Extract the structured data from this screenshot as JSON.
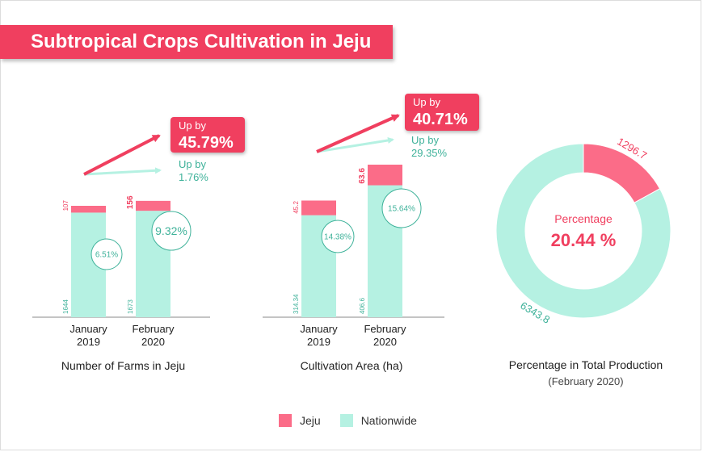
{
  "title": "Subtropical Crops Cultivation in Jeju",
  "colors": {
    "jeju": "#fb6c88",
    "nationwide": "#b5f1e2",
    "accent": "#f03f5f",
    "teal_text": "#3fb29a"
  },
  "legend": {
    "jeju": "Jeju",
    "nationwide": "Nationwide"
  },
  "chart_data": [
    {
      "type": "bar",
      "xlabel": "Number of Farms in Jeju",
      "categories": [
        "January\n2019",
        "February\n2020"
      ],
      "series": [
        {
          "name": "Jeju",
          "values": [
            107,
            156
          ],
          "labels": [
            "107",
            "156"
          ]
        },
        {
          "name": "Nationwide",
          "values": [
            1644,
            1673
          ],
          "labels": [
            "1644",
            "1673"
          ]
        }
      ],
      "ratio_labels": [
        "6.51%",
        "9.32%"
      ],
      "growth_jeju": {
        "line1": "Up by",
        "line2": "45.79%"
      },
      "growth_nationwide": {
        "line1": "Up by",
        "line2": "1.76%"
      }
    },
    {
      "type": "bar",
      "xlabel": "Cultivation Area (ha)",
      "categories": [
        "January\n2019",
        "February\n2020"
      ],
      "series": [
        {
          "name": "Jeju",
          "values": [
            45.2,
            63.6
          ],
          "labels": [
            "45.2",
            "63.6"
          ]
        },
        {
          "name": "Nationwide",
          "values": [
            314.34,
            406.6
          ],
          "labels": [
            "314.34",
            "406.6"
          ]
        }
      ],
      "ratio_labels": [
        "14.38%",
        "15.64%"
      ],
      "growth_jeju": {
        "line1": "Up by",
        "line2": "40.71%"
      },
      "growth_nationwide": {
        "line1": "Up by",
        "line2": "29.35%"
      }
    },
    {
      "type": "pie",
      "xlabel": "Percentage in Total Production",
      "subtitle": "(February 2020)",
      "slices": [
        {
          "name": "Jeju",
          "value": 1296.7,
          "label": "1296.7"
        },
        {
          "name": "Nationwide",
          "value": 6343.8,
          "label": "6343.8"
        }
      ],
      "center_label": "Percentage",
      "center_value": "20.44 %"
    }
  ]
}
